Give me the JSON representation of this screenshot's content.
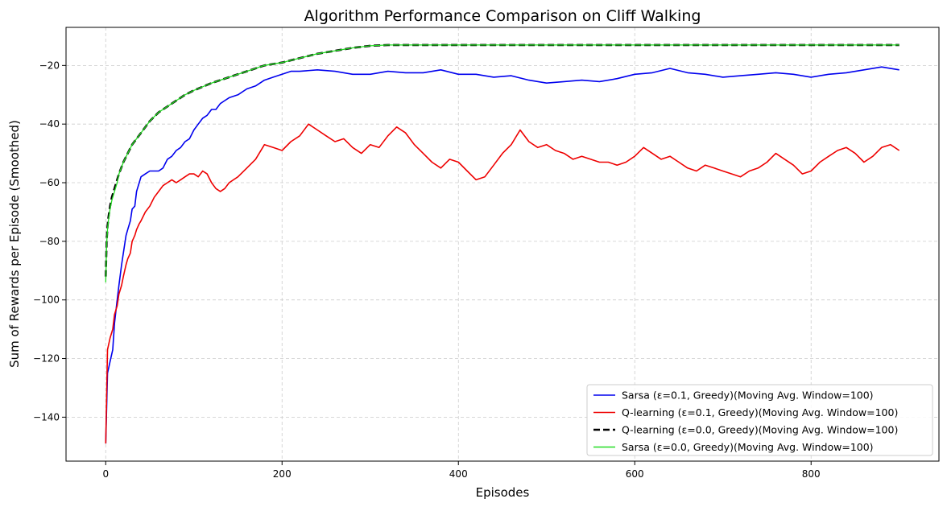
{
  "chart_data": {
    "type": "line",
    "title": "Algorithm Performance Comparison on Cliff Walking",
    "xlabel": "Episodes",
    "ylabel": "Sum of Rewards per Episode (Smoothed)",
    "xlim": [
      -45,
      945
    ],
    "ylim": [
      -155,
      -7
    ],
    "xticks": [
      0,
      200,
      400,
      600,
      800
    ],
    "yticks": [
      -140,
      -120,
      -100,
      -80,
      -60,
      -40,
      -20
    ],
    "grid": true,
    "legend_position": "lower-right",
    "series": [
      {
        "name": "Sarsa (ε=0.1, Greedy)(Moving Avg. Window=100)",
        "color": "#0000ee",
        "style": "solid",
        "x": [
          0,
          2,
          5,
          8,
          10,
          13,
          15,
          18,
          20,
          23,
          25,
          28,
          30,
          33,
          35,
          38,
          40,
          45,
          50,
          55,
          60,
          65,
          70,
          75,
          80,
          85,
          90,
          95,
          100,
          105,
          110,
          115,
          120,
          125,
          130,
          135,
          140,
          150,
          160,
          170,
          180,
          190,
          200,
          210,
          220,
          240,
          260,
          280,
          300,
          320,
          340,
          360,
          380,
          400,
          420,
          440,
          460,
          480,
          500,
          520,
          540,
          560,
          580,
          600,
          620,
          640,
          660,
          680,
          700,
          720,
          740,
          760,
          780,
          800,
          820,
          840,
          860,
          880,
          900
        ],
        "y": [
          -149,
          -125,
          -121,
          -117,
          -108,
          -100,
          -95,
          -88,
          -84,
          -78,
          -76,
          -73,
          -69,
          -68,
          -63,
          -60,
          -58,
          -57,
          -56,
          -56,
          -56,
          -55,
          -52,
          -51,
          -49,
          -48,
          -46,
          -45,
          -42,
          -40,
          -38,
          -37,
          -35,
          -35,
          -33,
          -32,
          -31,
          -30,
          -28,
          -27,
          -25,
          -24,
          -23,
          -22,
          -22,
          -21.5,
          -22,
          -23,
          -23,
          -22,
          -22.5,
          -22.5,
          -21.5,
          -23,
          -23,
          -24,
          -23.5,
          -25,
          -26,
          -25.5,
          -25,
          -25.5,
          -24.5,
          -23,
          -22.5,
          -21,
          -22.5,
          -23,
          -24,
          -23.5,
          -23,
          -22.5,
          -23,
          -24,
          -23,
          -22.5,
          -21.5,
          -20.5,
          -21.5
        ]
      },
      {
        "name": "Q-learning (ε=0.1, Greedy)(Moving Avg. Window=100)",
        "color": "#ee0000",
        "style": "solid",
        "x": [
          0,
          2,
          5,
          8,
          10,
          13,
          15,
          18,
          20,
          23,
          25,
          28,
          30,
          33,
          35,
          38,
          40,
          45,
          50,
          55,
          60,
          65,
          70,
          75,
          80,
          85,
          90,
          95,
          100,
          105,
          110,
          115,
          120,
          125,
          130,
          135,
          140,
          150,
          160,
          170,
          180,
          190,
          200,
          210,
          220,
          230,
          240,
          250,
          260,
          270,
          280,
          290,
          300,
          310,
          320,
          330,
          340,
          350,
          360,
          370,
          380,
          390,
          400,
          410,
          420,
          430,
          440,
          450,
          460,
          470,
          480,
          490,
          500,
          510,
          520,
          530,
          540,
          550,
          560,
          570,
          580,
          590,
          600,
          610,
          620,
          630,
          640,
          650,
          660,
          670,
          680,
          690,
          700,
          710,
          720,
          730,
          740,
          750,
          760,
          770,
          780,
          790,
          800,
          810,
          820,
          830,
          840,
          850,
          860,
          870,
          880,
          890,
          900
        ],
        "y": [
          -149,
          -117,
          -113,
          -110,
          -105,
          -102,
          -98,
          -95,
          -92,
          -88,
          -86,
          -84,
          -80,
          -78,
          -76,
          -74,
          -73,
          -70,
          -68,
          -65,
          -63,
          -61,
          -60,
          -59,
          -60,
          -59,
          -58,
          -57,
          -57,
          -58,
          -56,
          -57,
          -60,
          -62,
          -63,
          -62,
          -60,
          -58,
          -55,
          -52,
          -47,
          -48,
          -49,
          -46,
          -44,
          -40,
          -42,
          -44,
          -46,
          -45,
          -48,
          -50,
          -47,
          -48,
          -44,
          -41,
          -43,
          -47,
          -50,
          -53,
          -55,
          -52,
          -53,
          -56,
          -59,
          -58,
          -54,
          -50,
          -47,
          -42,
          -46,
          -48,
          -47,
          -49,
          -50,
          -52,
          -51,
          -52,
          -53,
          -53,
          -54,
          -53,
          -51,
          -48,
          -50,
          -52,
          -51,
          -53,
          -55,
          -56,
          -54,
          -55,
          -56,
          -57,
          -58,
          -56,
          -55,
          -53,
          -50,
          -52,
          -54,
          -57,
          -56,
          -53,
          -51,
          -49,
          -48,
          -50,
          -53,
          -51,
          -48,
          -47,
          -49
        ]
      },
      {
        "name": "Q-learning (ε=0.0, Greedy)(Moving Avg. Window=100)",
        "color": "#000000",
        "style": "dashed",
        "x": [
          0,
          1,
          2,
          3,
          5,
          7,
          10,
          13,
          15,
          20,
          25,
          30,
          35,
          40,
          50,
          60,
          70,
          80,
          90,
          100,
          120,
          140,
          160,
          180,
          200,
          220,
          240,
          260,
          280,
          300,
          320,
          400,
          500,
          600,
          700,
          800,
          900
        ],
        "y": [
          -92,
          -80,
          -75,
          -72,
          -68,
          -65,
          -62,
          -59,
          -57,
          -53,
          -50,
          -47,
          -45,
          -43,
          -39,
          -36,
          -34,
          -32,
          -30,
          -28.5,
          -26,
          -24,
          -22,
          -20,
          -19,
          -17.5,
          -16,
          -15,
          -14,
          -13.3,
          -13,
          -13,
          -13,
          -13,
          -13,
          -13,
          -13
        ]
      },
      {
        "name": "Sarsa (ε=0.0, Greedy)(Moving Avg. Window=100)",
        "color": "#22dd22",
        "style": "solid",
        "x": [
          0,
          1,
          2,
          3,
          5,
          7,
          10,
          13,
          15,
          20,
          25,
          30,
          35,
          40,
          50,
          60,
          70,
          80,
          90,
          100,
          120,
          140,
          160,
          180,
          200,
          220,
          240,
          260,
          280,
          300,
          320,
          400,
          500,
          600,
          700,
          800,
          900
        ],
        "y": [
          -94,
          -81,
          -76,
          -73,
          -69,
          -66,
          -63,
          -60,
          -57,
          -53,
          -50,
          -47,
          -45,
          -43,
          -39,
          -36,
          -34,
          -32,
          -30,
          -28.5,
          -26,
          -24,
          -22,
          -20,
          -19,
          -17.5,
          -16,
          -15,
          -14,
          -13.3,
          -13,
          -13,
          -13,
          -13,
          -13,
          -13,
          -13
        ]
      }
    ]
  }
}
